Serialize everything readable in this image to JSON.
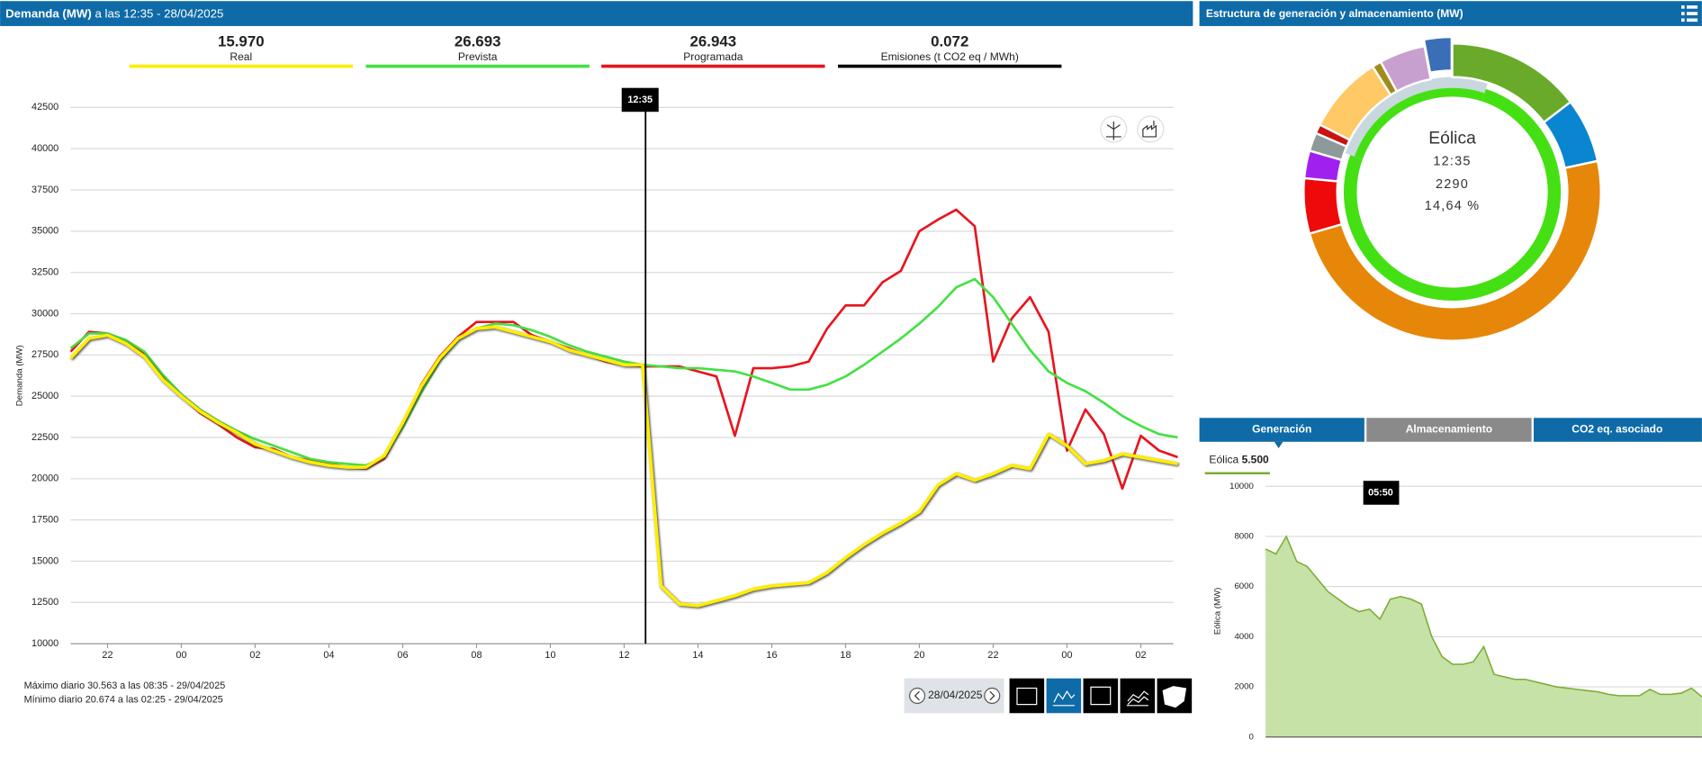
{
  "header": {
    "title": "Demanda (MW)",
    "subtitle": "a las 12:35 - 28/04/2025"
  },
  "panel_title": "Estructura de generación y almacenamiento (MW)",
  "footer": {
    "daily_max": "Máximo diario 30.563 a las 08:35 - 29/04/2025",
    "daily_min": "Mínimo diario 20.674 a las 02:25 - 29/04/2025",
    "date": "28/04/2025"
  },
  "tabs": [
    "Generación",
    "Almacenamiento",
    "CO2 eq. asociado"
  ],
  "chart_data": [
    {
      "type": "line",
      "y_label": "Demanda (MW)",
      "grid": true,
      "x": [
        21,
        21.5,
        22,
        22.5,
        23,
        23.5,
        24,
        24.5,
        25,
        25.5,
        26,
        26.5,
        27,
        27.5,
        28,
        28.5,
        29,
        29.5,
        30,
        30.5,
        31,
        31.5,
        32,
        32.5,
        33,
        33.5,
        34,
        34.5,
        35,
        35.5,
        36,
        36.5,
        37,
        37.5,
        38,
        38.5,
        39,
        39.5,
        40,
        40.5,
        41,
        41.5,
        42,
        42.5,
        43,
        43.5,
        44,
        44.5,
        45,
        45.5,
        46,
        46.5,
        47,
        47.5,
        48,
        48.5,
        49,
        49.5,
        50,
        50.5,
        51
      ],
      "xlim": [
        21,
        51
      ],
      "xticks": [
        22,
        {
          "value": 24,
          "label": "00"
        },
        {
          "value": 26,
          "label": "02"
        },
        {
          "value": 28,
          "label": "04"
        },
        {
          "value": 30,
          "label": "06"
        },
        {
          "value": 32,
          "label": "08"
        },
        {
          "value": 34,
          "label": "10"
        },
        {
          "value": 36,
          "label": "12"
        },
        {
          "value": 38,
          "label": "14"
        },
        {
          "value": 40,
          "label": "16"
        },
        {
          "value": 42,
          "label": "18"
        },
        {
          "value": 44,
          "label": "20"
        },
        {
          "value": 46,
          "label": "22"
        },
        {
          "value": 48,
          "label": "00"
        },
        {
          "value": 50,
          "label": "02"
        }
      ],
      "ylim": [
        10000,
        42500
      ],
      "yticks": [
        10000,
        12500,
        15000,
        17500,
        20000,
        22500,
        25000,
        27500,
        30000,
        32500,
        35000,
        37500,
        40000,
        42500
      ],
      "cursor": {
        "x": 36.58,
        "label": "12:35"
      },
      "series": [
        {
          "name": "Real",
          "color": "#ffee00",
          "current": 15970,
          "current_label": "15.970",
          "values": [
            27300,
            28500,
            28700,
            28200,
            27400,
            26000,
            25000,
            24100,
            23400,
            22800,
            22100,
            21700,
            21300,
            21000,
            20800,
            20700,
            20700,
            21400,
            23400,
            25600,
            27300,
            28500,
            29100,
            29200,
            28900,
            28600,
            28300,
            27800,
            27500,
            27200,
            26900,
            26900,
            13500,
            12400,
            12300,
            12600,
            12900,
            13300,
            13500,
            13600,
            13700,
            14300,
            15200,
            16000,
            16700,
            17300,
            18000,
            19600,
            20300,
            19900,
            20300,
            20800,
            20600,
            22700,
            22000,
            20900,
            21100,
            21500,
            21300,
            21100,
            20900
          ]
        },
        {
          "name": "Prevista",
          "color": "#44e044",
          "current": 26693,
          "current_label": "26.693",
          "values": [
            27900,
            28800,
            28800,
            28400,
            27700,
            26300,
            25100,
            24200,
            23500,
            22900,
            22400,
            22000,
            21600,
            21200,
            21000,
            20900,
            20800,
            21300,
            23100,
            25200,
            27100,
            28400,
            29100,
            29400,
            29300,
            29000,
            28600,
            28100,
            27700,
            27400,
            27100,
            26900,
            26800,
            26700,
            26700,
            26600,
            26500,
            26200,
            25800,
            25400,
            25400,
            25700,
            26200,
            26900,
            27700,
            28500,
            29400,
            30400,
            31600,
            32100,
            31000,
            29400,
            27800,
            26500,
            25800,
            25300,
            24600,
            23800,
            23200,
            22700,
            22500
          ]
        },
        {
          "name": "Programada",
          "color": "#e8141e",
          "current": 26943,
          "current_label": "26.943",
          "values": [
            27700,
            28900,
            28800,
            28300,
            27600,
            26200,
            25000,
            24000,
            23300,
            22500,
            21900,
            21800,
            21300,
            21100,
            20900,
            20700,
            20600,
            21200,
            23200,
            25700,
            27400,
            28600,
            29500,
            29500,
            29500,
            28700,
            28300,
            27900,
            27500,
            27100,
            26900,
            26800,
            26800,
            26800,
            26500,
            26200,
            22600,
            26700,
            26700,
            26800,
            27100,
            29100,
            30500,
            30500,
            31900,
            32600,
            35000,
            35700,
            36300,
            35300,
            27100,
            29700,
            31000,
            28900,
            21700,
            24200,
            22700,
            19400,
            22600,
            21700,
            21300
          ]
        }
      ],
      "emissions": {
        "name": "Emisiones (t CO2 eq / MWh)",
        "value": 0.072,
        "color": "#000000"
      }
    },
    {
      "type": "pie",
      "values": [
        14.64,
        7,
        48.86,
        6,
        3,
        2,
        1,
        8.5,
        1,
        5,
        3
      ],
      "colors": [
        "#6aaa2a",
        "#0a85d0",
        "#e6870a",
        "#ee0a0a",
        "#a020f0",
        "#8e9a9a",
        "#cc1111",
        "#ffc966",
        "#a08c1e",
        "#c8a0d0",
        "#3a6fb8"
      ],
      "exploded": 10,
      "center_title": "Eólica",
      "center_time": "12:35",
      "center_value": 2290,
      "center_percent": "14,64 %"
    },
    {
      "type": "area",
      "y_label": "Eólica (MW)",
      "color": "#7aad34",
      "fill": "#c6e2a6",
      "legend_name": "Eólica",
      "legend_value": 5500,
      "legend_value_label": "5.500",
      "tooltip": "05:50",
      "ylim": [
        0,
        10000
      ],
      "yticks": [
        0,
        2000,
        4000,
        6000,
        8000,
        10000
      ],
      "grid": true,
      "values": [
        7500,
        7300,
        8000,
        7000,
        6800,
        6300,
        5800,
        5500,
        5200,
        5000,
        5100,
        4700,
        5500,
        5600,
        5500,
        5300,
        4000,
        3200,
        2900,
        2900,
        3000,
        3600,
        2500,
        2400,
        2300,
        2300,
        2200,
        2100,
        2000,
        1950,
        1900,
        1850,
        1800,
        1700,
        1650,
        1650,
        1650,
        1900,
        1700,
        1700,
        1750,
        1950,
        1600
      ]
    }
  ]
}
